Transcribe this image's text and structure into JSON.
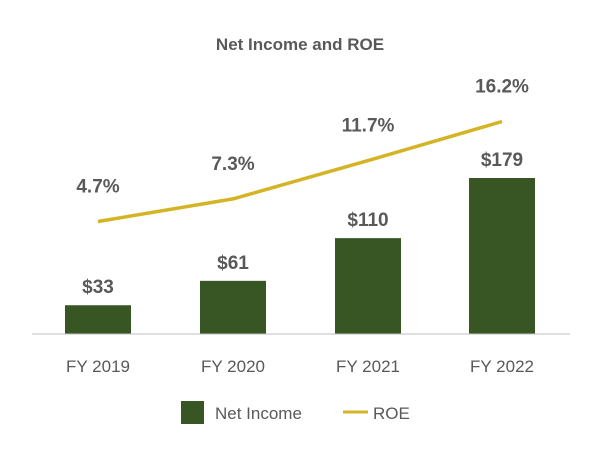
{
  "chart_data": {
    "type": "bar",
    "title": "Net Income and ROE",
    "categories": [
      "FY 2019",
      "FY 2020",
      "FY 2021",
      "FY 2022"
    ],
    "series": [
      {
        "name": "Net Income",
        "type": "bar",
        "values": [
          33,
          61,
          110,
          179
        ],
        "labels": [
          "$33",
          "$61",
          "$110",
          "$179"
        ],
        "color": "#375623"
      },
      {
        "name": "ROE",
        "type": "line",
        "values": [
          4.7,
          7.3,
          11.7,
          16.2
        ],
        "labels": [
          "4.7%",
          "7.3%",
          "11.7%",
          "16.2%"
        ],
        "color": "#D4B425"
      }
    ],
    "legend": {
      "position": "bottom",
      "entries": [
        "Net Income",
        "ROE"
      ]
    },
    "xlabel": "",
    "ylabel": "",
    "grid": false
  },
  "colors": {
    "bar": "#375623",
    "line": "#D4B425",
    "axis": "#bfbfbf",
    "text": "#595959"
  }
}
